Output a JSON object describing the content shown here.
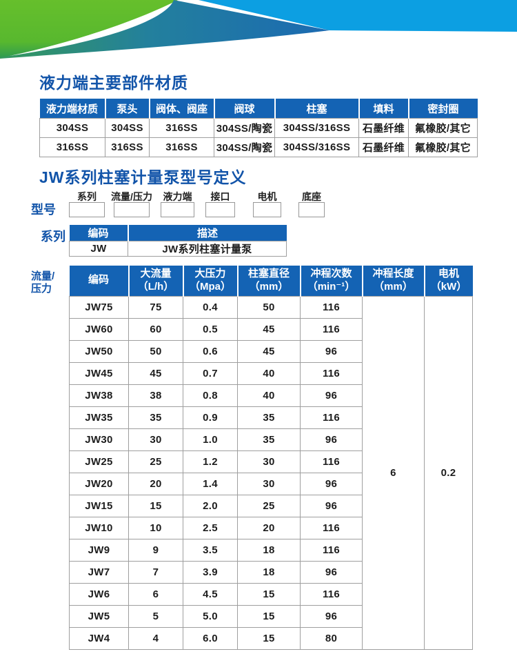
{
  "brand": {
    "title_blue": "#1254a9",
    "table_header_blue": "#1463b4",
    "banner_green": "#66bf2c",
    "banner_green_dark": "#2f9b50",
    "banner_teal": "#35985c",
    "banner_deep_blue": "#1b6ab2",
    "banner_light_blue": "#0c9fe2",
    "border_gray": "#9e9e9e"
  },
  "section_materials": {
    "title": "液力端主要部件材质",
    "table": {
      "headers": [
        "液力端材质",
        "泵头",
        "阀体、阀座",
        "阀球",
        "柱塞",
        "填料",
        "密封圈"
      ],
      "rows": [
        [
          "304SS",
          "304SS",
          "316SS",
          "304SS/陶瓷",
          "304SS/316SS",
          "石墨纤维",
          "氟橡胶/其它"
        ],
        [
          "316SS",
          "316SS",
          "316SS",
          "304SS/陶瓷",
          "304SS/316SS",
          "石墨纤维",
          "氟橡胶/其它"
        ]
      ]
    }
  },
  "section_model": {
    "title": "JW系列柱塞计量泵型号定义",
    "model_label": "型号",
    "fields": [
      "系列",
      "流量/压力",
      "液力端",
      "接口",
      "电机",
      "底座"
    ],
    "series_label": "系列",
    "series_table": {
      "headers": [
        "编码",
        "描述"
      ],
      "rows": [
        [
          "JW",
          "JW系列柱塞计量泵"
        ]
      ]
    }
  },
  "section_specs": {
    "label": "流量/\n压力",
    "table": {
      "headers": [
        {
          "title": "编码",
          "unit": ""
        },
        {
          "title": "大流量",
          "unit": "（L/h）"
        },
        {
          "title": "大压力",
          "unit": "（Mpa）"
        },
        {
          "title": "柱塞直径",
          "unit": "（mm）"
        },
        {
          "title": "冲程次数",
          "unit": "（min⁻¹）"
        },
        {
          "title": "冲程长度",
          "unit": "（mm）"
        },
        {
          "title": "电机",
          "unit": "（kW）"
        }
      ],
      "rows": [
        [
          "JW75",
          "75",
          "0.4",
          "50",
          "116"
        ],
        [
          "JW60",
          "60",
          "0.5",
          "45",
          "116"
        ],
        [
          "JW50",
          "50",
          "0.6",
          "45",
          "96"
        ],
        [
          "JW45",
          "45",
          "0.7",
          "40",
          "116"
        ],
        [
          "JW38",
          "38",
          "0.8",
          "40",
          "96"
        ],
        [
          "JW35",
          "35",
          "0.9",
          "35",
          "116"
        ],
        [
          "JW30",
          "30",
          "1.0",
          "35",
          "96"
        ],
        [
          "JW25",
          "25",
          "1.2",
          "30",
          "116"
        ],
        [
          "JW20",
          "20",
          "1.4",
          "30",
          "96"
        ],
        [
          "JW15",
          "15",
          "2.0",
          "25",
          "96"
        ],
        [
          "JW10",
          "10",
          "2.5",
          "20",
          "116"
        ],
        [
          "JW9",
          "9",
          "3.5",
          "18",
          "116"
        ],
        [
          "JW7",
          "7",
          "3.9",
          "18",
          "96"
        ],
        [
          "JW6",
          "6",
          "4.5",
          "15",
          "116"
        ],
        [
          "JW5",
          "5",
          "5.0",
          "15",
          "96"
        ],
        [
          "JW4",
          "4",
          "6.0",
          "15",
          "80"
        ]
      ],
      "merged": {
        "stroke_length": "6",
        "motor_power": "0.2"
      }
    }
  }
}
